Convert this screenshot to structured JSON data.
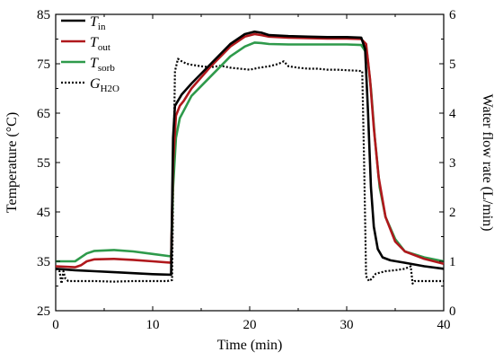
{
  "chart_data": {
    "type": "line",
    "xlabel": "Time (min)",
    "ylabel_left": "Temperature (°C)",
    "ylabel_right": "Water flow rate (L/min)",
    "xlim": [
      0,
      40
    ],
    "xticks": [
      0,
      10,
      20,
      30,
      40
    ],
    "ylim_left": [
      25,
      85
    ],
    "yticks_left": [
      25,
      35,
      45,
      55,
      65,
      75,
      85
    ],
    "ylim_right": [
      0,
      6
    ],
    "yticks_right": [
      0,
      1,
      2,
      3,
      4,
      5,
      6
    ],
    "grid": false,
    "legend_position": "top-left",
    "series": [
      {
        "name": "T",
        "sub": "in",
        "axis": "left",
        "color": "#000000",
        "dash": "none",
        "x": [
          -0.2,
          2,
          4,
          6,
          8,
          10,
          11.9,
          12.1,
          12.3,
          12.6,
          13,
          14,
          16,
          18,
          19.5,
          20.5,
          21.2,
          22,
          24,
          26,
          28,
          30,
          31.5,
          31.9,
          32.2,
          32.5,
          32.8,
          33.2,
          33.7,
          34.5,
          36,
          38,
          40
        ],
        "y": [
          33.5,
          33.2,
          33,
          32.8,
          32.6,
          32.4,
          32.3,
          60,
          66.5,
          67.5,
          68.8,
          71,
          75,
          79,
          81,
          81.5,
          81.3,
          80.8,
          80.6,
          80.5,
          80.4,
          80.4,
          80.3,
          78,
          65,
          50,
          42,
          37.5,
          35.8,
          35.2,
          34.7,
          34,
          33.5
        ]
      },
      {
        "name": "T",
        "sub": "out",
        "axis": "left",
        "color": "#b0181c",
        "dash": "none",
        "x": [
          -0.2,
          2,
          2.6,
          3.2,
          4,
          6,
          8,
          10,
          11.9,
          12.1,
          12.4,
          12.8,
          13.2,
          14,
          16,
          18,
          19.5,
          20.5,
          21.2,
          22,
          24,
          26,
          28,
          30,
          31.5,
          32,
          32.4,
          32.8,
          33.3,
          34,
          35,
          36,
          38,
          40
        ],
        "y": [
          34,
          33.8,
          34.2,
          35,
          35.4,
          35.5,
          35.3,
          35,
          34.7,
          55,
          64.5,
          66.5,
          67.5,
          70,
          74.5,
          78.5,
          80.5,
          81,
          80.8,
          80.5,
          80.3,
          80.2,
          80.1,
          80.1,
          80,
          79,
          72,
          62,
          52,
          44,
          39,
          37,
          35.5,
          34.5
        ]
      },
      {
        "name": "T",
        "sub": "sorb",
        "axis": "left",
        "color": "#2e9a4b",
        "dash": "none",
        "x": [
          -0.2,
          2,
          2.6,
          3.2,
          4,
          6,
          8,
          10,
          11.9,
          12.1,
          12.4,
          12.8,
          13.2,
          14,
          16,
          18,
          19.5,
          20.5,
          21.2,
          22,
          24,
          26,
          28,
          30,
          31.5,
          32.1,
          32.5,
          32.9,
          33.4,
          34,
          35,
          36,
          38,
          40
        ],
        "y": [
          35,
          35,
          35.8,
          36.6,
          37.1,
          37.3,
          37,
          36.5,
          36,
          50,
          60,
          64,
          65.5,
          68.5,
          72.5,
          76.5,
          78.5,
          79.3,
          79.2,
          79,
          78.9,
          78.9,
          78.9,
          78.9,
          78.8,
          77,
          70,
          60,
          50,
          44,
          39.5,
          37,
          35.8,
          35
        ]
      },
      {
        "name": "G",
        "sub": "H2O",
        "axis": "right",
        "color": "#000000",
        "dash": "2,2",
        "x": [
          -0.2,
          0.4,
          0.6,
          0.8,
          1,
          1.3,
          2,
          4,
          6,
          8,
          10,
          11.5,
          12,
          12.15,
          12.3,
          12.6,
          13,
          13.5,
          14,
          15,
          16,
          17,
          18,
          19,
          20,
          21,
          22,
          23,
          23.5,
          24,
          25,
          26,
          27,
          28,
          29,
          30,
          31,
          31.6,
          31.8,
          32,
          32.3,
          32.6,
          33,
          34,
          35,
          36,
          36.6,
          36.8,
          37,
          38,
          40
        ],
        "y": [
          0.85,
          0.8,
          0.55,
          0.8,
          0.65,
          0.6,
          0.6,
          0.6,
          0.59,
          0.6,
          0.6,
          0.6,
          0.62,
          3,
          4.85,
          5.1,
          5.05,
          5.0,
          4.98,
          4.95,
          4.93,
          4.96,
          4.92,
          4.9,
          4.88,
          4.92,
          4.95,
          5.0,
          5.05,
          4.95,
          4.92,
          4.9,
          4.9,
          4.88,
          4.88,
          4.87,
          4.86,
          4.85,
          3,
          0.7,
          0.6,
          0.65,
          0.75,
          0.8,
          0.82,
          0.85,
          0.9,
          0.55,
          0.6,
          0.6,
          0.6
        ]
      }
    ]
  }
}
